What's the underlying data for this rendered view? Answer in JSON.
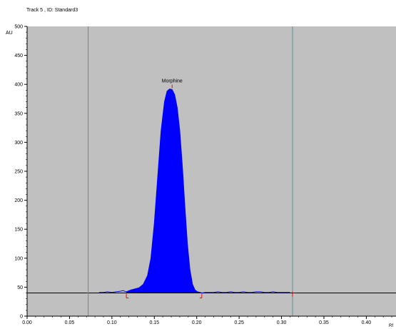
{
  "chart_data": {
    "type": "area",
    "title": "Track  5 , ID: Standard3",
    "ylabel": "AU",
    "xlabel": "Rf",
    "xlim": [
      0.0,
      0.435
    ],
    "ylim": [
      0,
      500
    ],
    "x_ticks": [
      "0.00",
      "0.05",
      "0.10",
      "0.15",
      "0.20",
      "0.25",
      "0.30",
      "0.35",
      "0.40"
    ],
    "y_ticks": [
      "0",
      "50",
      "100",
      "150",
      "200",
      "250",
      "300",
      "350",
      "400",
      "450",
      "500"
    ],
    "grid": false,
    "baseline_y": 40,
    "track_boundaries_x": [
      0.072,
      0.313
    ],
    "peak": {
      "label": "Morphine",
      "start_x": 0.117,
      "max_x": 0.171,
      "max_y": 392,
      "end_x": 0.206
    },
    "series": [
      {
        "x": [
          0.085,
          0.09,
          0.095,
          0.1,
          0.105,
          0.11,
          0.113,
          0.117,
          0.122,
          0.127,
          0.132,
          0.137,
          0.142,
          0.146,
          0.15,
          0.154,
          0.158,
          0.162,
          0.165,
          0.168,
          0.171,
          0.174,
          0.177,
          0.18,
          0.183,
          0.186,
          0.189,
          0.192,
          0.195,
          0.198,
          0.201,
          0.204,
          0.206,
          0.21,
          0.215,
          0.22,
          0.225,
          0.23,
          0.235,
          0.24,
          0.245,
          0.25,
          0.255,
          0.26,
          0.265,
          0.27,
          0.275,
          0.28,
          0.285,
          0.29,
          0.295,
          0.3,
          0.305,
          0.31
        ],
        "y": [
          41,
          41,
          42,
          41,
          42,
          43,
          44,
          42,
          45,
          47,
          49,
          55,
          70,
          100,
          160,
          240,
          320,
          370,
          388,
          392,
          391,
          382,
          360,
          320,
          260,
          190,
          125,
          80,
          55,
          45,
          42,
          41,
          40,
          41,
          41,
          41,
          42,
          41,
          41,
          42,
          41,
          41,
          42,
          41,
          41,
          42,
          42,
          41,
          41,
          42,
          41,
          41,
          41,
          41
        ],
        "color": "#0000ff"
      }
    ],
    "colors": {
      "plot_background": "#c0c0c0",
      "signal": "#0000ff",
      "fill": "#0000ff",
      "baseline": "#000000",
      "track_line": "#5f8f95",
      "integration_marker": "#ff0000"
    }
  }
}
